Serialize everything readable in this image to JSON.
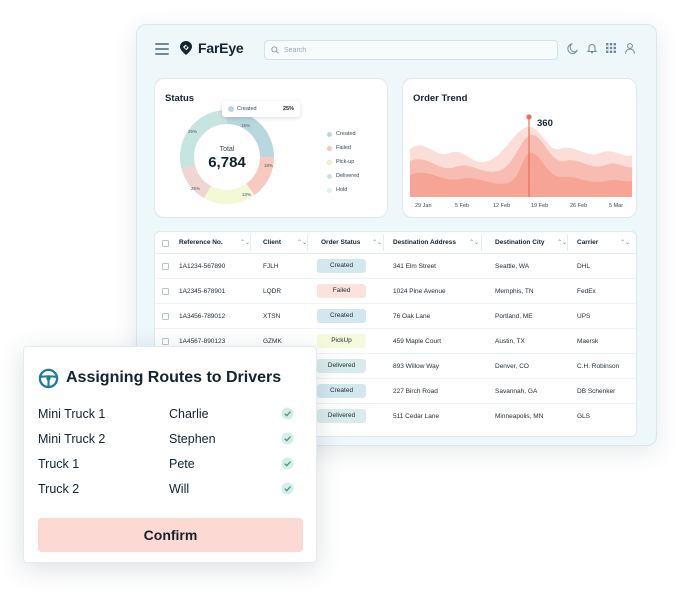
{
  "app": {
    "brand": "FarEye",
    "search_placeholder": "Search"
  },
  "status": {
    "title": "Status",
    "total_label": "Total",
    "total_value": "6,784",
    "tooltip": {
      "label": "Created",
      "value": "25%"
    },
    "legend": [
      {
        "label": "Created",
        "color": "#b9d7de"
      },
      {
        "label": "Failed",
        "color": "#f8c9c0"
      },
      {
        "label": "Pick-up",
        "color": "#f3f8d5"
      },
      {
        "label": "Delivered",
        "color": "#c7e5e0"
      },
      {
        "label": "Hold",
        "color": "#e3eef1"
      }
    ],
    "percents": [
      "15%",
      "18%",
      "13%",
      "25%",
      "25%"
    ]
  },
  "trend": {
    "title": "Order Trend",
    "peak_value": "360",
    "x_labels": [
      "29 Jan",
      "5 Feb",
      "12 Feb",
      "19 Feb",
      "26 Feb",
      "5 Mar"
    ],
    "accent_color": "#f06a5a"
  },
  "table": {
    "headers": [
      "Reference No.",
      "Client",
      "Order Status",
      "Destination Address",
      "Destination City",
      "Carrier"
    ],
    "rows": [
      {
        "ref": "1A1234-567890",
        "client": "FJLH",
        "status": "Created",
        "address": "341 Elm Street",
        "city": "Seattle, WA",
        "carrier": "DHL"
      },
      {
        "ref": "1A2345-678901",
        "client": "LQDR",
        "status": "Failed",
        "address": "1024 Pine Avenue",
        "city": "Memphis, TN",
        "carrier": "FedEx"
      },
      {
        "ref": "1A3456-789012",
        "client": "XTSN",
        "status": "Created",
        "address": "76 Oak Lane",
        "city": "Portland, ME",
        "carrier": "UPS"
      },
      {
        "ref": "1A4567-890123",
        "client": "GZMK",
        "status": "PickUp",
        "address": "459 Maple Court",
        "city": "Austin, TX",
        "carrier": "Maersk"
      },
      {
        "ref": "",
        "client": "",
        "status": "Delivered",
        "address": "893 Willow Way",
        "city": "Denver, CO",
        "carrier": "C.H. Robinson"
      },
      {
        "ref": "",
        "client": "",
        "status": "Created",
        "address": "227 Birch Road",
        "city": "Savannah, GA",
        "carrier": "DB Schenker"
      },
      {
        "ref": "",
        "client": "",
        "status": "Delivered",
        "address": "511 Cedar Lane",
        "city": "Minneapolis, MN",
        "carrier": "GLS"
      }
    ],
    "status_colors": {
      "Created": {
        "bg": "#d3e8ee",
        "fg": "#1e2a33"
      },
      "Failed": {
        "bg": "#fde1dc",
        "fg": "#1e2a33"
      },
      "PickUp": {
        "bg": "#f6fadc",
        "fg": "#1e2a33"
      },
      "Delivered": {
        "bg": "#d7ede9",
        "fg": "#1e2a33"
      }
    }
  },
  "modal": {
    "title": "Assigning Routes to Drivers",
    "assignments": [
      {
        "vehicle": "Mini Truck 1",
        "driver": "Charlie"
      },
      {
        "vehicle": "Mini Truck 2",
        "driver": "Stephen"
      },
      {
        "vehicle": "Truck 1",
        "driver": "Pete"
      },
      {
        "vehicle": "Truck 2",
        "driver": "Will"
      }
    ],
    "confirm_label": "Confirm"
  }
}
